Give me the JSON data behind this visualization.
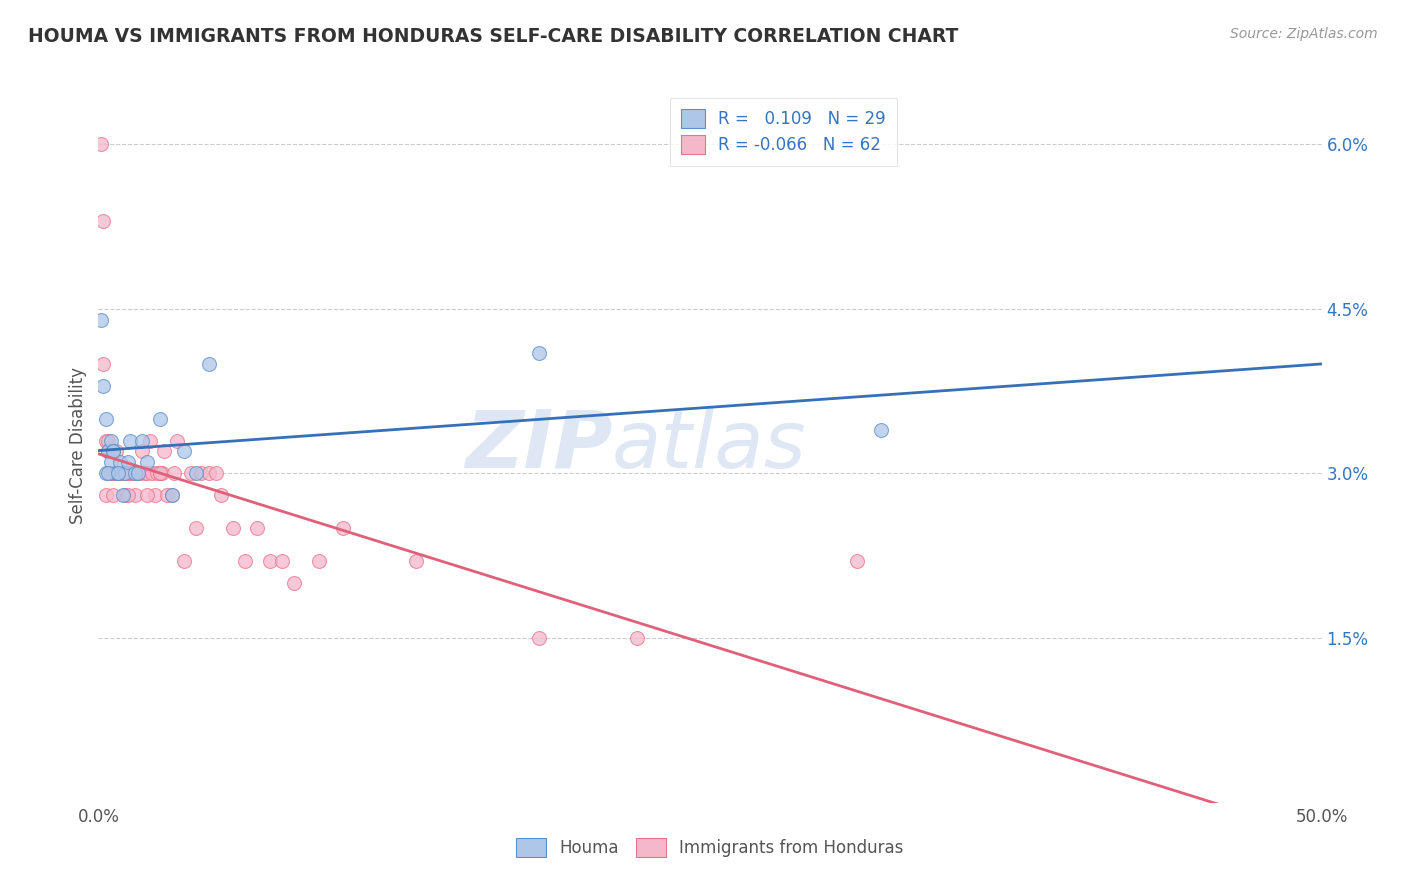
{
  "title": "HOUMA VS IMMIGRANTS FROM HONDURAS SELF-CARE DISABILITY CORRELATION CHART",
  "source": "Source: ZipAtlas.com",
  "ylabel": "Self-Care Disability",
  "xmin": 0.0,
  "xmax": 0.5,
  "ymin": 0.0,
  "ymax": 0.065,
  "yticks": [
    0.0,
    0.015,
    0.03,
    0.045,
    0.06
  ],
  "ytick_labels": [
    "",
    "1.5%",
    "3.0%",
    "4.5%",
    "6.0%"
  ],
  "xticks": [
    0.0,
    0.5
  ],
  "xtick_labels": [
    "0.0%",
    "50.0%"
  ],
  "houma_R": 0.109,
  "houma_N": 29,
  "honduras_R": -0.066,
  "honduras_N": 62,
  "houma_color": "#aec6e8",
  "honduras_color": "#f5b8cb",
  "houma_edge_color": "#5b8fc9",
  "honduras_edge_color": "#e8748a",
  "houma_line_color": "#3570b8",
  "honduras_line_color": "#e0607a",
  "legend_R_color": "#3575c0",
  "watermark": "ZIPatlas",
  "houma_x": [
    0.001,
    0.002,
    0.003,
    0.004,
    0.005,
    0.005,
    0.006,
    0.007,
    0.008,
    0.009,
    0.01,
    0.011,
    0.012,
    0.013,
    0.015,
    0.016,
    0.018,
    0.02,
    0.025,
    0.03,
    0.035,
    0.04,
    0.045,
    0.003,
    0.004,
    0.006,
    0.008,
    0.18,
    0.32
  ],
  "houma_y": [
    0.044,
    0.038,
    0.035,
    0.032,
    0.031,
    0.033,
    0.032,
    0.03,
    0.03,
    0.031,
    0.028,
    0.03,
    0.031,
    0.033,
    0.03,
    0.03,
    0.033,
    0.031,
    0.035,
    0.028,
    0.032,
    0.03,
    0.04,
    0.03,
    0.03,
    0.032,
    0.03,
    0.041,
    0.034
  ],
  "honduras_x": [
    0.001,
    0.002,
    0.002,
    0.003,
    0.004,
    0.005,
    0.006,
    0.007,
    0.008,
    0.009,
    0.01,
    0.011,
    0.012,
    0.013,
    0.014,
    0.015,
    0.016,
    0.017,
    0.018,
    0.019,
    0.02,
    0.021,
    0.022,
    0.023,
    0.024,
    0.025,
    0.026,
    0.027,
    0.028,
    0.03,
    0.031,
    0.032,
    0.035,
    0.038,
    0.04,
    0.042,
    0.045,
    0.048,
    0.05,
    0.055,
    0.06,
    0.065,
    0.07,
    0.075,
    0.08,
    0.09,
    0.1,
    0.13,
    0.18,
    0.22,
    0.003,
    0.004,
    0.005,
    0.006,
    0.007,
    0.008,
    0.01,
    0.012,
    0.015,
    0.02,
    0.025,
    0.31
  ],
  "honduras_y": [
    0.06,
    0.053,
    0.04,
    0.033,
    0.033,
    0.03,
    0.03,
    0.03,
    0.03,
    0.03,
    0.03,
    0.028,
    0.03,
    0.03,
    0.03,
    0.028,
    0.03,
    0.03,
    0.032,
    0.03,
    0.03,
    0.033,
    0.03,
    0.028,
    0.03,
    0.03,
    0.03,
    0.032,
    0.028,
    0.028,
    0.03,
    0.033,
    0.022,
    0.03,
    0.025,
    0.03,
    0.03,
    0.03,
    0.028,
    0.025,
    0.022,
    0.025,
    0.022,
    0.022,
    0.02,
    0.022,
    0.025,
    0.022,
    0.015,
    0.015,
    0.028,
    0.032,
    0.03,
    0.028,
    0.032,
    0.03,
    0.03,
    0.028,
    0.03,
    0.028,
    0.03,
    0.022
  ]
}
